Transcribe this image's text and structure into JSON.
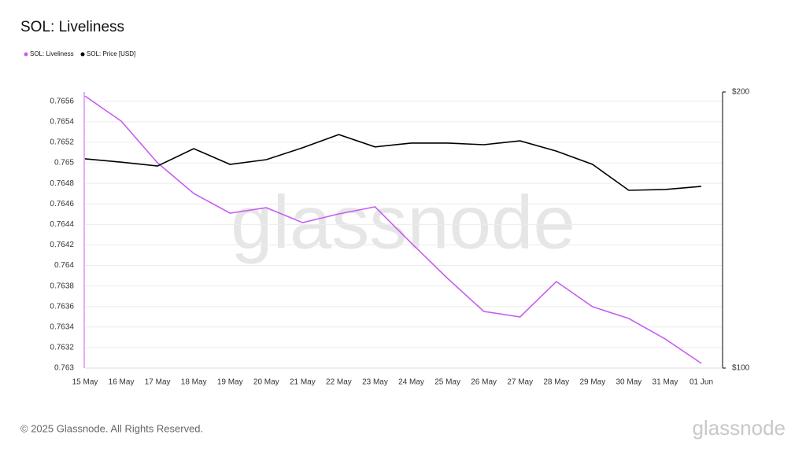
{
  "chart_data": {
    "type": "line",
    "title": "SOL: Liveliness",
    "watermark": "glassnode",
    "footer": "© 2025 Glassnode. All Rights Reserved.",
    "logo": "glassnode",
    "categories": [
      "15 May",
      "16 May",
      "17 May",
      "18 May",
      "19 May",
      "20 May",
      "21 May",
      "22 May",
      "23 May",
      "24 May",
      "25 May",
      "26 May",
      "27 May",
      "28 May",
      "29 May",
      "30 May",
      "31 May",
      "01 Jun"
    ],
    "series": [
      {
        "name": "SOL: Liveliness",
        "color": "#c65ff0",
        "values": [
          0.765651,
          0.765406,
          0.765,
          0.764701,
          0.76451,
          0.764563,
          0.764418,
          0.764502,
          0.764571,
          0.764218,
          0.763874,
          0.763552,
          0.763498,
          0.763843,
          0.763598,
          0.763483,
          0.763284,
          0.763046
        ]
      },
      {
        "name": "SOL: Price [USD]",
        "color": "#000000",
        "axis": "y2",
        "values": [
          175.8,
          174.6,
          173.2,
          179.5,
          173.8,
          175.5,
          179.8,
          184.6,
          180.1,
          181.5,
          181.5,
          180.9,
          182.3,
          178.6,
          173.8,
          164.4,
          164.7,
          165.8
        ]
      }
    ],
    "ylim": [
      0.763,
      0.76569
    ],
    "yticks": [
      0.763,
      0.7632,
      0.7634,
      0.7636,
      0.7638,
      0.764,
      0.7642,
      0.7644,
      0.7646,
      0.7648,
      0.765,
      0.7652,
      0.7654,
      0.7656
    ],
    "y2lim": [
      100,
      200
    ],
    "y2ticks": [
      {
        "value": 100,
        "label": "$100"
      },
      {
        "value": 200,
        "label": "$200"
      }
    ],
    "grid": true
  }
}
